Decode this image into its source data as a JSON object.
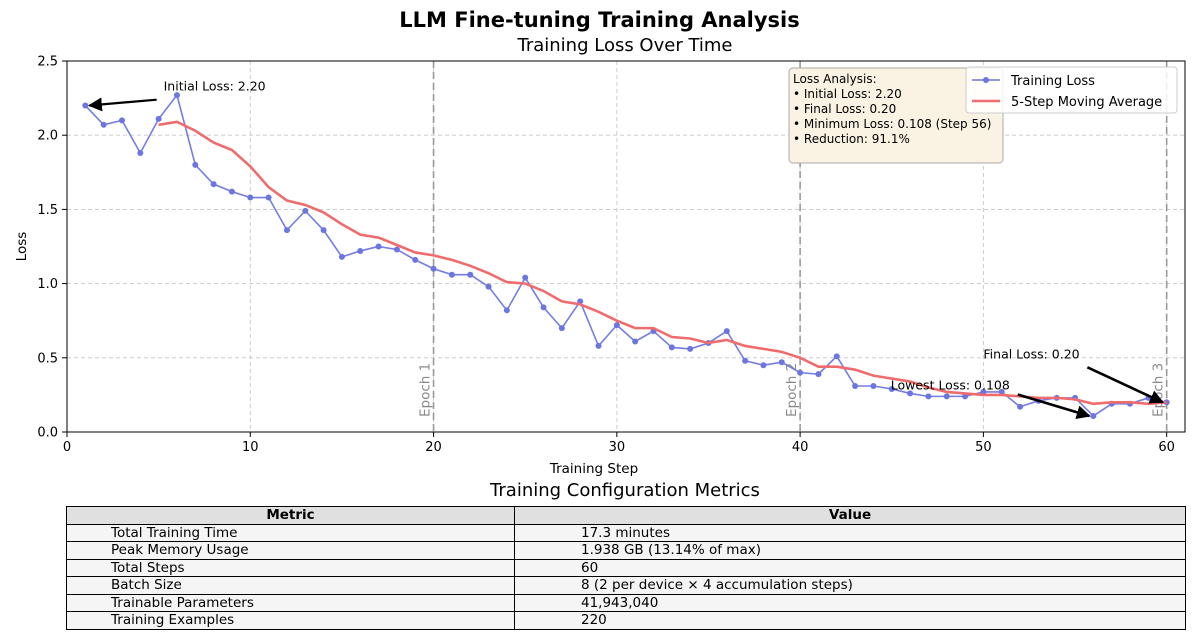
{
  "figure": {
    "suptitle": "LLM Fine-tuning Training Analysis"
  },
  "chart_data": {
    "type": "line",
    "title": "Training Loss Over Time",
    "xlabel": "Training Step",
    "ylabel": "Loss",
    "xlim": [
      0,
      61
    ],
    "ylim": [
      0,
      2.5
    ],
    "xticks": [
      0,
      10,
      20,
      30,
      40,
      50,
      60
    ],
    "yticks": [
      0.0,
      0.5,
      1.0,
      1.5,
      2.0,
      2.5
    ],
    "xtick_labels": [
      "0",
      "10",
      "20",
      "30",
      "40",
      "50",
      "60"
    ],
    "ytick_labels": [
      "0.0",
      "0.5",
      "1.0",
      "1.5",
      "2.0",
      "2.5"
    ],
    "grid": true,
    "legend_position": "upper right",
    "x": [
      1,
      2,
      3,
      4,
      5,
      6,
      7,
      8,
      9,
      10,
      11,
      12,
      13,
      14,
      15,
      16,
      17,
      18,
      19,
      20,
      21,
      22,
      23,
      24,
      25,
      26,
      27,
      28,
      29,
      30,
      31,
      32,
      33,
      34,
      35,
      36,
      37,
      38,
      39,
      40,
      41,
      42,
      43,
      44,
      45,
      46,
      47,
      48,
      49,
      50,
      51,
      52,
      53,
      54,
      55,
      56,
      57,
      58,
      59,
      60
    ],
    "series": [
      {
        "name": "Training Loss",
        "color": "#6b76e0",
        "marker": "circle",
        "values": [
          2.2,
          2.07,
          2.1,
          1.88,
          2.11,
          2.27,
          1.8,
          1.67,
          1.62,
          1.58,
          1.58,
          1.36,
          1.49,
          1.36,
          1.18,
          1.22,
          1.25,
          1.23,
          1.16,
          1.1,
          1.06,
          1.06,
          0.98,
          0.82,
          1.04,
          0.84,
          0.7,
          0.88,
          0.58,
          0.72,
          0.61,
          0.68,
          0.57,
          0.56,
          0.6,
          0.68,
          0.48,
          0.45,
          0.47,
          0.4,
          0.39,
          0.51,
          0.31,
          0.31,
          0.29,
          0.26,
          0.24,
          0.24,
          0.24,
          0.27,
          0.27,
          0.17,
          0.21,
          0.23,
          0.23,
          0.108,
          0.19,
          0.19,
          0.23,
          0.2
        ]
      },
      {
        "name": "5-Step Moving Average",
        "color": "#f06c6c",
        "marker": "none",
        "x": [
          5,
          6,
          7,
          8,
          9,
          10,
          11,
          12,
          13,
          14,
          15,
          16,
          17,
          18,
          19,
          20,
          21,
          22,
          23,
          24,
          25,
          26,
          27,
          28,
          29,
          30,
          31,
          32,
          33,
          34,
          35,
          36,
          37,
          38,
          39,
          40,
          41,
          42,
          43,
          44,
          45,
          46,
          47,
          48,
          49,
          50,
          51,
          52,
          53,
          54,
          55,
          56,
          57,
          58,
          59,
          60
        ],
        "values": [
          2.07,
          2.09,
          2.03,
          1.95,
          1.9,
          1.79,
          1.65,
          1.56,
          1.53,
          1.48,
          1.4,
          1.33,
          1.31,
          1.26,
          1.21,
          1.19,
          1.16,
          1.12,
          1.07,
          1.01,
          1.0,
          0.95,
          0.88,
          0.86,
          0.81,
          0.75,
          0.7,
          0.7,
          0.64,
          0.63,
          0.6,
          0.62,
          0.58,
          0.56,
          0.54,
          0.5,
          0.44,
          0.44,
          0.42,
          0.38,
          0.36,
          0.34,
          0.3,
          0.27,
          0.26,
          0.25,
          0.25,
          0.24,
          0.23,
          0.23,
          0.22,
          0.19,
          0.2,
          0.2,
          0.19,
          0.2
        ]
      }
    ],
    "epoch_lines": [
      {
        "x": 20,
        "label": "Epoch 1"
      },
      {
        "x": 40,
        "label": "Epoch 2"
      },
      {
        "x": 60,
        "label": "Epoch 3"
      }
    ],
    "annotations": [
      {
        "text": "Initial Loss: 2.20",
        "point_x": 1,
        "point_y": 2.2,
        "text_x": 5,
        "text_y": 2.3
      },
      {
        "text": "Lowest Loss: 0.108",
        "point_x": 56,
        "point_y": 0.108,
        "text_x": 45,
        "text_y": 0.28
      },
      {
        "text": "Final Loss: 0.20",
        "point_x": 60,
        "point_y": 0.2,
        "text_x": 50,
        "text_y": 0.49
      }
    ],
    "info_box": {
      "lines": [
        "Loss Analysis:",
        "• Initial Loss: 2.20",
        "• Final Loss: 0.20",
        "• Minimum Loss: 0.108 (Step 56)",
        "• Reduction: 91.1%"
      ],
      "background": "#faf3e3"
    }
  },
  "table": {
    "title": "Training Configuration Metrics",
    "headers": [
      "Metric",
      "Value"
    ],
    "rows": [
      {
        "metric": "Total Training Time",
        "value": "17.3 minutes"
      },
      {
        "metric": "Peak Memory Usage",
        "value": "1.938 GB (13.14% of max)"
      },
      {
        "metric": "Total Steps",
        "value": "60"
      },
      {
        "metric": "Batch Size",
        "value": "8 (2 per device × 4 accumulation steps)"
      },
      {
        "metric": "Trainable Parameters",
        "value": "41,943,040"
      },
      {
        "metric": "Training Examples",
        "value": "220"
      }
    ]
  }
}
